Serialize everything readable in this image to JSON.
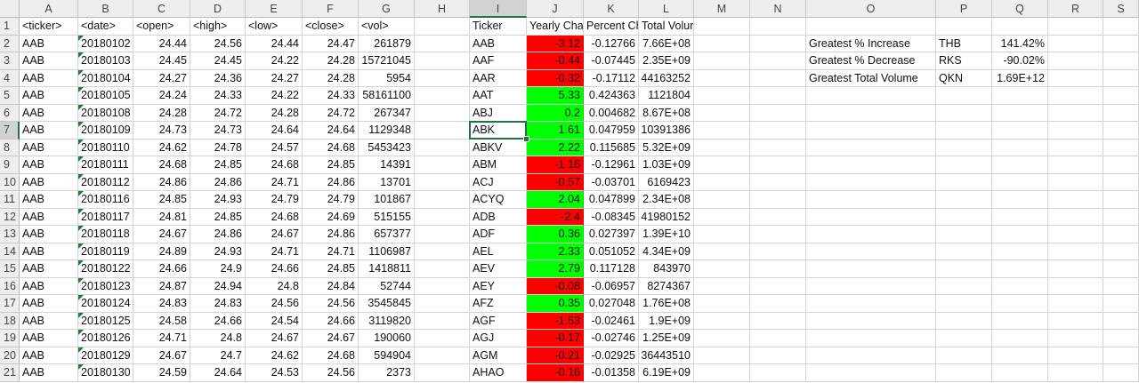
{
  "sheet": {
    "columns": [
      "A",
      "B",
      "C",
      "D",
      "E",
      "F",
      "G",
      "H",
      "I",
      "J",
      "K",
      "L",
      "M",
      "N",
      "O",
      "P",
      "Q",
      "R",
      "S"
    ],
    "selected_cell": "I7",
    "fill_colors": {
      "positive": "#00ff00",
      "negative": "#ff0000"
    },
    "header_row": {
      "A": "<ticker>",
      "B": "<date>",
      "C": "<open>",
      "D": "<high>",
      "E": "<low>",
      "F": "<close>",
      "G": "<vol>",
      "I": "Ticker",
      "J": "Yearly Change",
      "K": "Percent Change",
      "L": "Total Volume"
    },
    "stock_rows": [
      {
        "ticker": "AAB",
        "date": "20180102",
        "open": "24.44",
        "high": "24.56",
        "low": "24.44",
        "close": "24.47",
        "vol": "261879"
      },
      {
        "ticker": "AAB",
        "date": "20180103",
        "open": "24.45",
        "high": "24.45",
        "low": "24.22",
        "close": "24.28",
        "vol": "15721045"
      },
      {
        "ticker": "AAB",
        "date": "20180104",
        "open": "24.27",
        "high": "24.36",
        "low": "24.27",
        "close": "24.28",
        "vol": "5954"
      },
      {
        "ticker": "AAB",
        "date": "20180105",
        "open": "24.24",
        "high": "24.33",
        "low": "24.22",
        "close": "24.33",
        "vol": "58161100"
      },
      {
        "ticker": "AAB",
        "date": "20180108",
        "open": "24.28",
        "high": "24.72",
        "low": "24.28",
        "close": "24.72",
        "vol": "267347"
      },
      {
        "ticker": "AAB",
        "date": "20180109",
        "open": "24.73",
        "high": "24.73",
        "low": "24.64",
        "close": "24.64",
        "vol": "1129348"
      },
      {
        "ticker": "AAB",
        "date": "20180110",
        "open": "24.62",
        "high": "24.78",
        "low": "24.57",
        "close": "24.68",
        "vol": "5453423"
      },
      {
        "ticker": "AAB",
        "date": "20180111",
        "open": "24.68",
        "high": "24.85",
        "low": "24.68",
        "close": "24.85",
        "vol": "14391"
      },
      {
        "ticker": "AAB",
        "date": "20180112",
        "open": "24.86",
        "high": "24.86",
        "low": "24.71",
        "close": "24.86",
        "vol": "13701"
      },
      {
        "ticker": "AAB",
        "date": "20180116",
        "open": "24.85",
        "high": "24.93",
        "low": "24.79",
        "close": "24.79",
        "vol": "101867"
      },
      {
        "ticker": "AAB",
        "date": "20180117",
        "open": "24.81",
        "high": "24.85",
        "low": "24.68",
        "close": "24.69",
        "vol": "515155"
      },
      {
        "ticker": "AAB",
        "date": "20180118",
        "open": "24.67",
        "high": "24.86",
        "low": "24.67",
        "close": "24.86",
        "vol": "657377"
      },
      {
        "ticker": "AAB",
        "date": "20180119",
        "open": "24.89",
        "high": "24.93",
        "low": "24.71",
        "close": "24.71",
        "vol": "1106987"
      },
      {
        "ticker": "AAB",
        "date": "20180122",
        "open": "24.66",
        "high": "24.9",
        "low": "24.66",
        "close": "24.85",
        "vol": "1418811"
      },
      {
        "ticker": "AAB",
        "date": "20180123",
        "open": "24.87",
        "high": "24.94",
        "low": "24.8",
        "close": "24.84",
        "vol": "52744"
      },
      {
        "ticker": "AAB",
        "date": "20180124",
        "open": "24.83",
        "high": "24.83",
        "low": "24.56",
        "close": "24.56",
        "vol": "3545845"
      },
      {
        "ticker": "AAB",
        "date": "20180125",
        "open": "24.58",
        "high": "24.66",
        "low": "24.54",
        "close": "24.66",
        "vol": "3119820"
      },
      {
        "ticker": "AAB",
        "date": "20180126",
        "open": "24.71",
        "high": "24.8",
        "low": "24.67",
        "close": "24.67",
        "vol": "190060"
      },
      {
        "ticker": "AAB",
        "date": "20180129",
        "open": "24.67",
        "high": "24.7",
        "low": "24.62",
        "close": "24.68",
        "vol": "594904"
      },
      {
        "ticker": "AAB",
        "date": "20180130",
        "open": "24.59",
        "high": "24.64",
        "low": "24.53",
        "close": "24.56",
        "vol": "2373"
      }
    ],
    "summary_rows": [
      {
        "ticker": "AAB",
        "yearly_change": "-3.12",
        "percent_change": "-0.12766",
        "total_volume": "7.66E+08"
      },
      {
        "ticker": "AAF",
        "yearly_change": "-0.44",
        "percent_change": "-0.07445",
        "total_volume": "2.35E+09"
      },
      {
        "ticker": "AAR",
        "yearly_change": "-0.32",
        "percent_change": "-0.17112",
        "total_volume": "44163252"
      },
      {
        "ticker": "AAT",
        "yearly_change": "5.33",
        "percent_change": "0.424363",
        "total_volume": "1121804"
      },
      {
        "ticker": "ABJ",
        "yearly_change": "0.2",
        "percent_change": "0.004682",
        "total_volume": "8.67E+08"
      },
      {
        "ticker": "ABK",
        "yearly_change": "1.61",
        "percent_change": "0.047959",
        "total_volume": "10391386"
      },
      {
        "ticker": "ABKV",
        "yearly_change": "2.22",
        "percent_change": "0.115685",
        "total_volume": "5.32E+09"
      },
      {
        "ticker": "ABM",
        "yearly_change": "-1.16",
        "percent_change": "-0.12961",
        "total_volume": "1.03E+09"
      },
      {
        "ticker": "ACJ",
        "yearly_change": "-0.57",
        "percent_change": "-0.03701",
        "total_volume": "6169423"
      },
      {
        "ticker": "ACYQ",
        "yearly_change": "2.04",
        "percent_change": "0.047899",
        "total_volume": "2.34E+08"
      },
      {
        "ticker": "ADB",
        "yearly_change": "-2.4",
        "percent_change": "-0.08345",
        "total_volume": "41980152"
      },
      {
        "ticker": "ADF",
        "yearly_change": "0.36",
        "percent_change": "0.027397",
        "total_volume": "1.39E+10"
      },
      {
        "ticker": "AEL",
        "yearly_change": "2.33",
        "percent_change": "0.051052",
        "total_volume": "4.34E+09"
      },
      {
        "ticker": "AEV",
        "yearly_change": "2.79",
        "percent_change": "0.117128",
        "total_volume": "843970"
      },
      {
        "ticker": "AEY",
        "yearly_change": "-0.08",
        "percent_change": "-0.06957",
        "total_volume": "8274367"
      },
      {
        "ticker": "AFZ",
        "yearly_change": "0.35",
        "percent_change": "0.027048",
        "total_volume": "1.76E+08"
      },
      {
        "ticker": "AGF",
        "yearly_change": "-1.53",
        "percent_change": "-0.02461",
        "total_volume": "1.9E+09"
      },
      {
        "ticker": "AGJ",
        "yearly_change": "-0.17",
        "percent_change": "-0.02746",
        "total_volume": "1.25E+09"
      },
      {
        "ticker": "AGM",
        "yearly_change": "-0.21",
        "percent_change": "-0.02925",
        "total_volume": "36443510"
      },
      {
        "ticker": "AHAO",
        "yearly_change": "-0.16",
        "percent_change": "-0.01358",
        "total_volume": "6.19E+09"
      }
    ],
    "greatest": [
      {
        "label": "Greatest % Increase",
        "ticker": "THB",
        "value": "141.42%"
      },
      {
        "label": "Greatest % Decrease",
        "ticker": "RKS",
        "value": "-90.02%"
      },
      {
        "label": "Greatest Total Volume",
        "ticker": "QKN",
        "value": "1.69E+12"
      }
    ]
  }
}
